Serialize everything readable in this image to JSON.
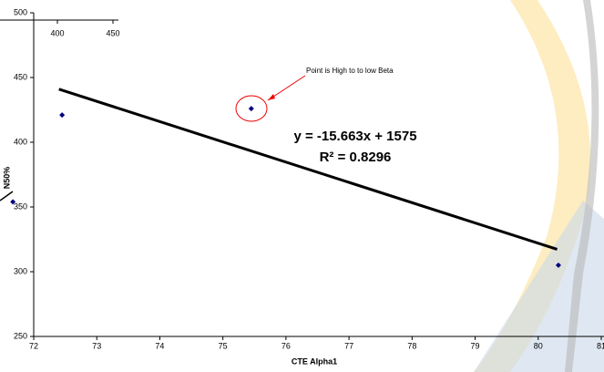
{
  "chart_data": {
    "type": "scatter",
    "x_label": "CTE Alpha1",
    "y_label": "N50%",
    "xlim": [
      72,
      81
    ],
    "xticks": [
      72,
      73,
      74,
      75,
      76,
      77,
      78,
      79,
      80,
      81
    ],
    "ylim": [
      250,
      500
    ],
    "yticks": [
      250,
      300,
      350,
      400,
      450,
      500
    ],
    "series": [
      {
        "color": "#000080",
        "x": [
          71.67,
          72.45,
          75.45,
          80.32
        ],
        "values": [
          354,
          421,
          426,
          305
        ]
      }
    ],
    "trendline": {
      "color": "#000000",
      "x": [
        72.4,
        80.3
      ],
      "values": [
        441,
        317.3
      ]
    },
    "equation": "y = -15.663x + 1575",
    "r_squared": "R² = 0.8296",
    "annotation": "Point is High to to low Beta",
    "inset_xticks": [
      400,
      450
    ]
  }
}
